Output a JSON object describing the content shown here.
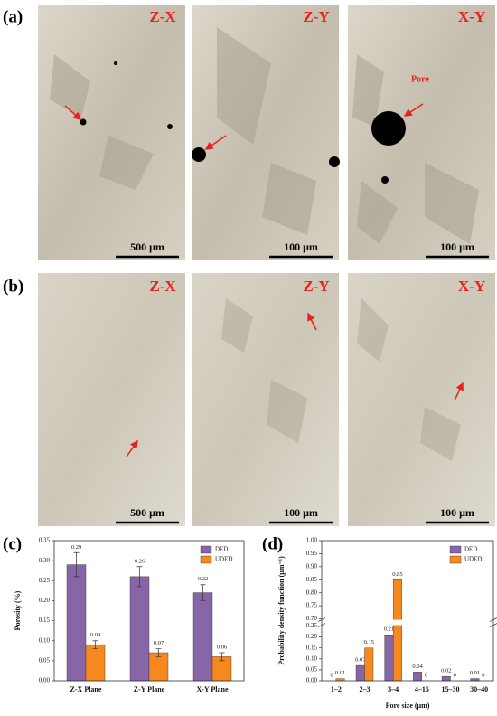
{
  "panels": {
    "a": {
      "label": "(a)",
      "images": [
        {
          "plane": "Z-X",
          "scale": "500 μm"
        },
        {
          "plane": "Z-Y",
          "scale": "100 μm"
        },
        {
          "plane": "X-Y",
          "scale": "100 μm"
        }
      ],
      "annotation": "Pore"
    },
    "b": {
      "label": "(b)",
      "images": [
        {
          "plane": "Z-X",
          "scale": "500 μm"
        },
        {
          "plane": "Z-Y",
          "scale": "100 μm"
        },
        {
          "plane": "X-Y",
          "scale": "100 μm"
        }
      ]
    }
  },
  "chart_data": [
    {
      "type": "bar",
      "label": "(c)",
      "y_label": "Porosity (%)",
      "categories": [
        "Z-X Plane",
        "Z-Y Plane",
        "X-Y Plane"
      ],
      "series": [
        {
          "name": "DED",
          "color": "#8766a8",
          "values": [
            0.29,
            0.26,
            0.22
          ],
          "errors": [
            0.03,
            0.025,
            0.02
          ]
        },
        {
          "name": "UDED",
          "color": "#f7881f",
          "values": [
            0.09,
            0.07,
            0.06
          ],
          "errors": [
            0.01,
            0.01,
            0.01
          ]
        }
      ],
      "ylim": [
        0,
        0.35
      ],
      "yticks": [
        {
          "value": 0,
          "label": "0.00"
        },
        0.05,
        {
          "value": 0.1,
          "label": "0.10"
        },
        0.15,
        {
          "value": 0.2,
          "label": "0.20"
        },
        0.25,
        {
          "value": 0.3,
          "label": "0.30"
        },
        0.35
      ],
      "legend": "top-right",
      "grid": false
    },
    {
      "type": "bar",
      "label": "(d)",
      "y_label": "Probability density function (μm⁻¹)",
      "x_label": "Pore size (μm)",
      "categories": [
        "1–2",
        "2–3",
        "3–4",
        "4–15",
        "15–30",
        "30–40"
      ],
      "series": [
        {
          "name": "DED",
          "color": "#8766a8",
          "values": [
            0,
            0.07,
            0.21,
            0.04,
            0.02,
            0.01
          ]
        },
        {
          "name": "UDED",
          "color": "#f7881f",
          "values": [
            0.01,
            0.15,
            0.85,
            0,
            0,
            0
          ]
        }
      ],
      "ylim": [
        0,
        1
      ],
      "y_break": [
        0.25,
        0.7
      ],
      "yticks": [
        {
          "value": 0,
          "label": "0.00"
        },
        0.05,
        {
          "value": 0.1,
          "label": "0.10"
        },
        0.15,
        {
          "value": 0.2,
          "label": "0.20"
        },
        0.25,
        {
          "value": 0.7,
          "label": "0.70"
        },
        0.75,
        {
          "value": 0.8,
          "label": "0.80"
        },
        0.85,
        {
          "value": 0.9,
          "label": "0.90"
        },
        0.95,
        {
          "value": 1,
          "label": "1.00"
        }
      ],
      "legend": "top-right",
      "grid": false
    }
  ]
}
